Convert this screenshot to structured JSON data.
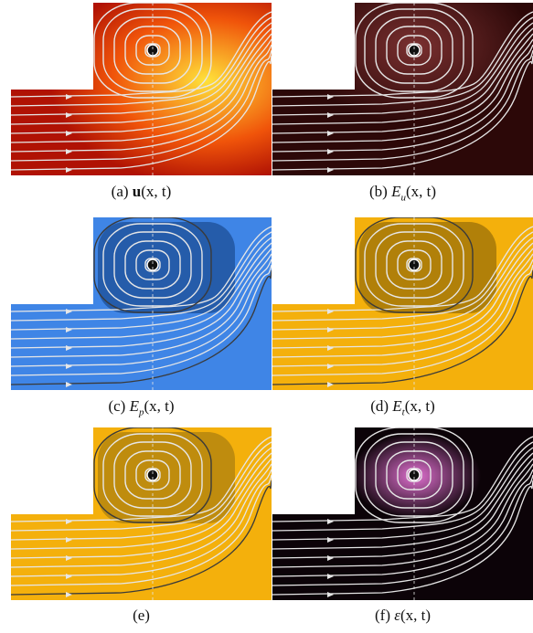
{
  "panels": [
    {
      "id": "a",
      "caption_prefix": "(a) ",
      "caption_main": "u",
      "caption_sub": "",
      "caption_args": "(x, t)"
    },
    {
      "id": "b",
      "caption_prefix": "(b) ",
      "caption_main": "E",
      "caption_sub": "u",
      "caption_args": "(x, t)"
    },
    {
      "id": "c",
      "caption_prefix": "(c) ",
      "caption_main": "E",
      "caption_sub": "p",
      "caption_args": "(x, t)"
    },
    {
      "id": "d",
      "caption_prefix": "(d) ",
      "caption_main": "E",
      "caption_sub": "t",
      "caption_args": "(x, t)"
    },
    {
      "id": "e",
      "caption_prefix": "(e)",
      "caption_main": "",
      "caption_sub": "",
      "caption_args": ""
    },
    {
      "id": "f",
      "caption_prefix": "(f) ",
      "caption_main": "ε",
      "caption_sub": "",
      "caption_args": "(x, t)"
    }
  ],
  "colors": {
    "a_base": "#f0540a",
    "a_hot": "#ffe23a",
    "a_dark": "#b01204",
    "b_base": "#2c0808",
    "b_glow": "#7a3030",
    "c_base": "#3f85e6",
    "c_dark": "#1e4f95",
    "d_base": "#f4b00c",
    "d_dark": "#7a5a08",
    "e_base": "#f4b00c",
    "e_dark": "#8a6810",
    "f_base": "#0c0308",
    "f_glow": "#e070d0",
    "streamline_light": "#e6e6e6",
    "streamline_dark": "#3a3a3a"
  }
}
